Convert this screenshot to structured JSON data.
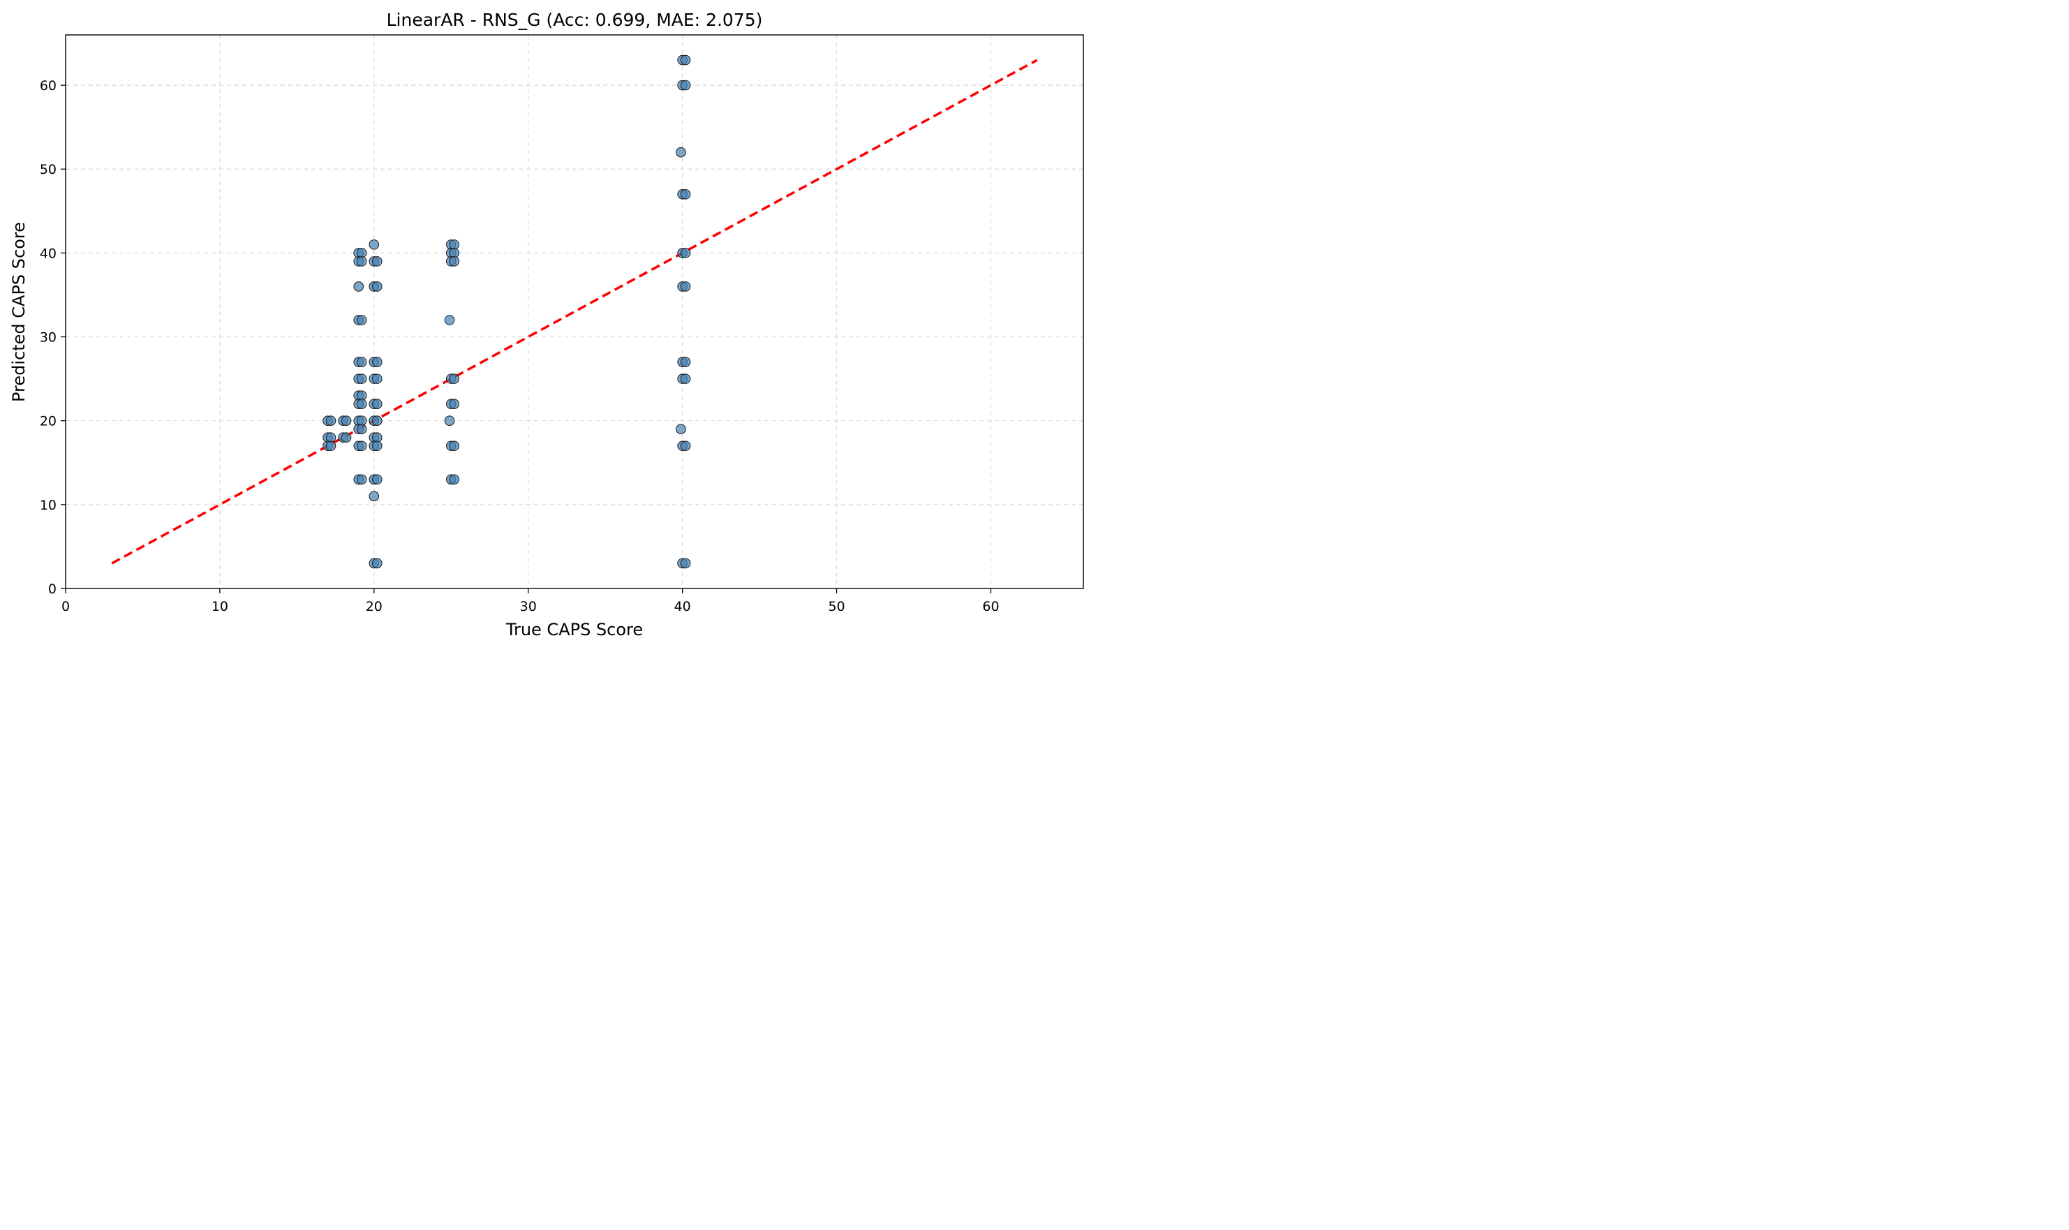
{
  "chart_data": {
    "type": "scatter",
    "title": "LinearAR - RNS_G (Acc: 0.699, MAE: 2.075)",
    "xlabel": "True CAPS Score",
    "ylabel": "Predicted CAPS Score",
    "xlim": [
      0,
      66
    ],
    "ylim": [
      0,
      66
    ],
    "xticks": [
      0,
      10,
      20,
      30,
      40,
      50,
      60
    ],
    "yticks": [
      0,
      10,
      20,
      30,
      40,
      50,
      60
    ],
    "xtick_labels": [
      "0",
      "10",
      "20",
      "30",
      "40",
      "50",
      "60"
    ],
    "ytick_labels": [
      "0",
      "10",
      "20",
      "30",
      "40",
      "50",
      "60"
    ],
    "grid": true,
    "colors": {
      "point_fill": "#4682b4",
      "point_edge": "#1a1a1a",
      "reference_line": "#ff0000",
      "grid": "#d9d9d9"
    },
    "reference_line": {
      "style": "dashed",
      "x": [
        3,
        63
      ],
      "y": [
        3,
        63
      ]
    },
    "points": [
      [
        17,
        20
      ],
      [
        17.2,
        20
      ],
      [
        17,
        18
      ],
      [
        17.2,
        18
      ],
      [
        17,
        17
      ],
      [
        17.2,
        17
      ],
      [
        18,
        20
      ],
      [
        18.2,
        20
      ],
      [
        18,
        18
      ],
      [
        18.2,
        18
      ],
      [
        19,
        40
      ],
      [
        19.2,
        40
      ],
      [
        19,
        39
      ],
      [
        19.2,
        39
      ],
      [
        19,
        36
      ],
      [
        19,
        32
      ],
      [
        19.2,
        32
      ],
      [
        19,
        27
      ],
      [
        19.2,
        27
      ],
      [
        19,
        25
      ],
      [
        19.2,
        25
      ],
      [
        19,
        23
      ],
      [
        19.2,
        23
      ],
      [
        19,
        22
      ],
      [
        19.2,
        22
      ],
      [
        19,
        20
      ],
      [
        19.2,
        20
      ],
      [
        19,
        19
      ],
      [
        19.2,
        19
      ],
      [
        19,
        17
      ],
      [
        19.2,
        17
      ],
      [
        19,
        13
      ],
      [
        19.2,
        13
      ],
      [
        20,
        41
      ],
      [
        20,
        39
      ],
      [
        20.2,
        39
      ],
      [
        20,
        36
      ],
      [
        20.2,
        36
      ],
      [
        20,
        27
      ],
      [
        20.2,
        27
      ],
      [
        20,
        25
      ],
      [
        20.2,
        25
      ],
      [
        20,
        22
      ],
      [
        20.2,
        22
      ],
      [
        20,
        20
      ],
      [
        20.2,
        20
      ],
      [
        20,
        18
      ],
      [
        20.2,
        18
      ],
      [
        20,
        17
      ],
      [
        20.2,
        17
      ],
      [
        20,
        13
      ],
      [
        20.2,
        13
      ],
      [
        20,
        11
      ],
      [
        20,
        3
      ],
      [
        20.2,
        3
      ],
      [
        25,
        41
      ],
      [
        25.2,
        41
      ],
      [
        25,
        40
      ],
      [
        25.2,
        40
      ],
      [
        25,
        39
      ],
      [
        25.2,
        39
      ],
      [
        24.9,
        32
      ],
      [
        25,
        25
      ],
      [
        25.2,
        25
      ],
      [
        25,
        22
      ],
      [
        25.2,
        22
      ],
      [
        24.9,
        20
      ],
      [
        25,
        17
      ],
      [
        25.2,
        17
      ],
      [
        25,
        13
      ],
      [
        25.2,
        13
      ],
      [
        40,
        63
      ],
      [
        40.2,
        63
      ],
      [
        40,
        60
      ],
      [
        40.2,
        60
      ],
      [
        39.9,
        52
      ],
      [
        40,
        47
      ],
      [
        40.2,
        47
      ],
      [
        40,
        40
      ],
      [
        40.2,
        40
      ],
      [
        40,
        36
      ],
      [
        40.2,
        36
      ],
      [
        40,
        27
      ],
      [
        40.2,
        27
      ],
      [
        40,
        25
      ],
      [
        40.2,
        25
      ],
      [
        39.9,
        19
      ],
      [
        40,
        17
      ],
      [
        40.2,
        17
      ],
      [
        40,
        3
      ],
      [
        40.2,
        3
      ]
    ]
  }
}
